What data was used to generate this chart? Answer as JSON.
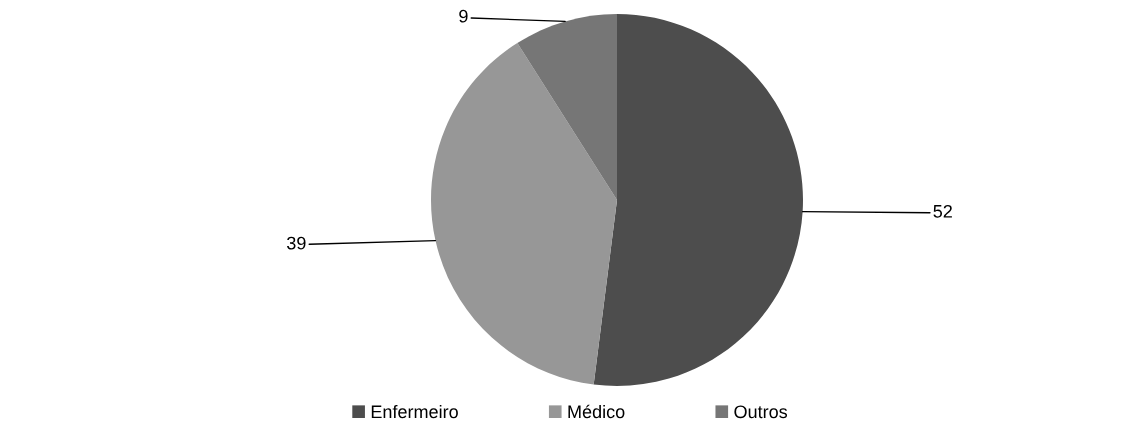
{
  "chart_data": {
    "type": "pie",
    "categories": [
      "Enfermeiro",
      "Médico",
      "Outros"
    ],
    "values": [
      52,
      39,
      9
    ],
    "colors": [
      "#4d4d4d",
      "#979797",
      "#767676"
    ],
    "data_labels": true,
    "legend": "bottom"
  }
}
